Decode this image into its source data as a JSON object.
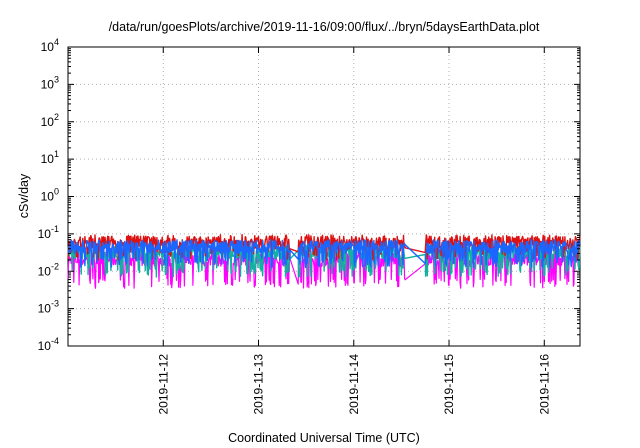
{
  "chart_data": {
    "type": "line",
    "title": "/data/run/goesPlots/archive/2019-11-16/09:00/flux/../bryn/5daysEarthData.plot",
    "xlabel": "Coordinated Universal Time (UTC)",
    "ylabel": "cSv/day",
    "x_axis": {
      "type": "date",
      "range": [
        "2019-11-11T00:00",
        "2019-11-16T09:00"
      ],
      "tick_labels": [
        "2019-11-12",
        "2019-11-13",
        "2019-11-14",
        "2019-11-15",
        "2019-11-16"
      ]
    },
    "y_axis": {
      "scale": "log",
      "range": [
        0.0001,
        10000
      ],
      "tick_labels": [
        {
          "base": "10",
          "exp": "4"
        },
        {
          "base": "10",
          "exp": "3"
        },
        {
          "base": "10",
          "exp": "2"
        },
        {
          "base": "10",
          "exp": "1"
        },
        {
          "base": "10",
          "exp": "0"
        },
        {
          "base": "10",
          "exp": "-1"
        },
        {
          "base": "10",
          "exp": "-2"
        },
        {
          "base": "10",
          "exp": "-3"
        },
        {
          "base": "10",
          "exp": "-4"
        }
      ]
    },
    "grid": true,
    "gaps": [
      {
        "start": "2019-11-13T08:00",
        "end": "2019-11-13T10:00"
      },
      {
        "start": "2019-11-14T13:00",
        "end": "2019-11-14T18:00"
      }
    ],
    "series": [
      {
        "color": "#dd1111",
        "base_level": 0.058,
        "min_level": 0.028,
        "spike_max": 0.095
      },
      {
        "color": "#1a66ff",
        "base_level": 0.045,
        "min_level": 0.018,
        "spike_max": 0.07
      },
      {
        "color": "#11b0a0",
        "base_level": 0.032,
        "min_level": 0.01,
        "spike_max": 0.05
      },
      {
        "color": "#ff00ff",
        "base_level": 0.02,
        "min_level": 0.005,
        "spike_max": 0.045
      }
    ]
  }
}
